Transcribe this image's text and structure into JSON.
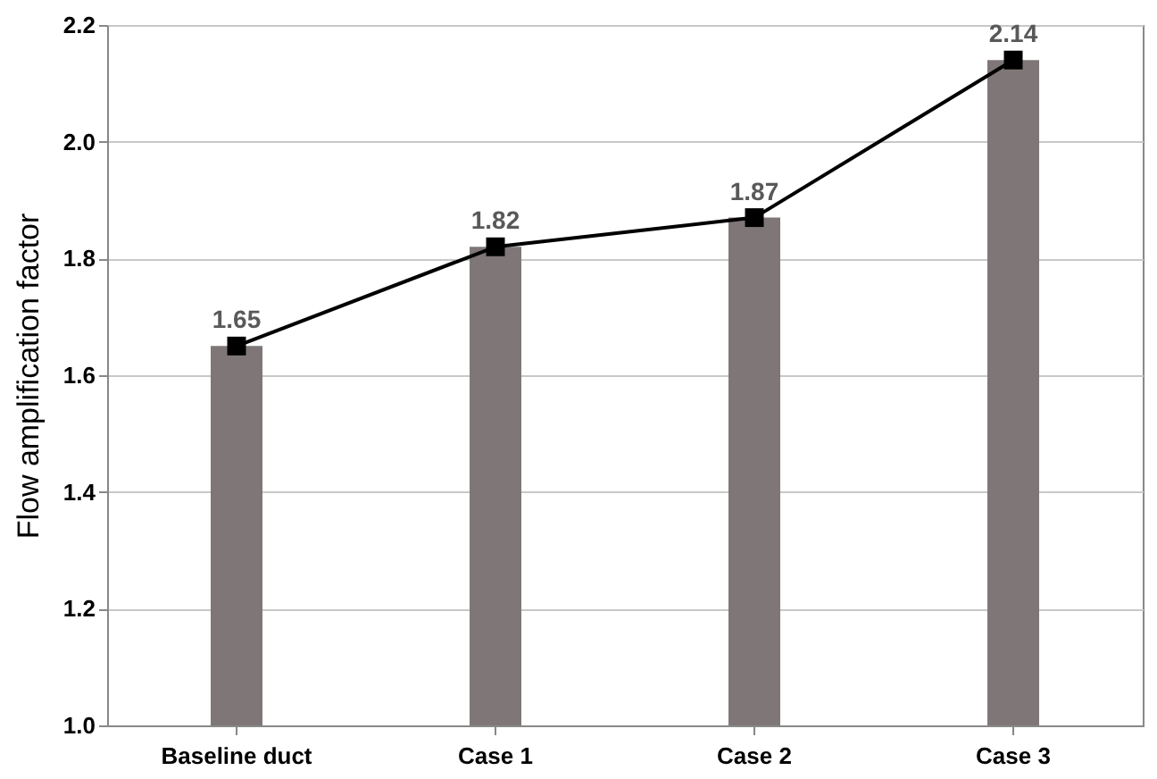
{
  "chart_data": {
    "type": "bar",
    "ylabel": "Flow amplification factor",
    "categories": [
      "Baseline duct",
      "Case 1",
      "Case 2",
      "Case 3"
    ],
    "series": [
      {
        "color": "#7f7777",
        "values": [
          1.65,
          1.82,
          1.87,
          2.14
        ]
      },
      {
        "type": "line",
        "color": "#000000",
        "values": [
          1.65,
          1.82,
          1.87,
          2.14
        ],
        "value_labels": [
          "1.65",
          "1.82",
          "1.87",
          "2.14"
        ]
      }
    ],
    "ylim": [
      1.0,
      2.2
    ],
    "yticks": [
      {
        "value": 1.0,
        "label": "1.0"
      },
      {
        "value": 1.2,
        "label": "1.2"
      },
      {
        "value": 1.4,
        "label": "1.4"
      },
      {
        "value": 1.6,
        "label": "1.6"
      },
      {
        "value": 1.8,
        "label": "1.8"
      },
      {
        "value": 2.0,
        "label": "2.0"
      },
      {
        "value": 2.2,
        "label": "2.2"
      }
    ],
    "grid": "y",
    "marker": "square",
    "line_style": "solid"
  }
}
